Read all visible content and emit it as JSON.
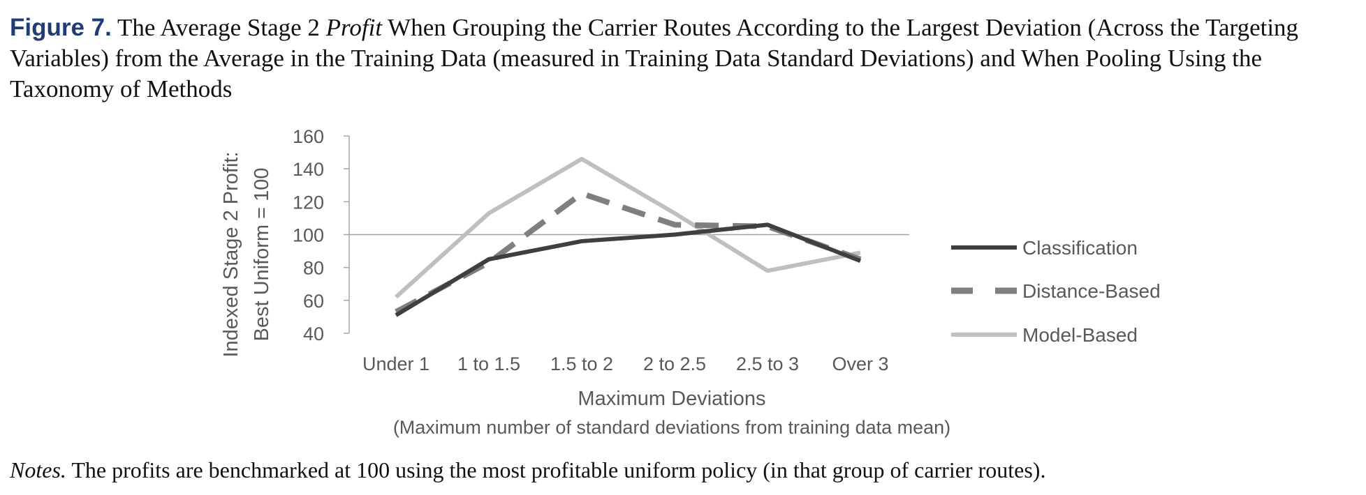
{
  "caption": {
    "label": "Figure 7.",
    "text_before_italic": " The Average Stage 2 ",
    "italic": "Profit",
    "text_after_italic": " When Grouping the Carrier Routes According to the Largest Deviation (Across the Targeting Variables) from the Average in the Training Data (measured in Training Data Standard Deviations) and When Pooling Using the Taxonomy of Methods"
  },
  "notes": {
    "label": "Notes.",
    "text": " The profits are benchmarked at 100 using the most profitable uniform policy (in that group of carrier routes)."
  },
  "chart_data": {
    "type": "line",
    "categories": [
      "Under 1",
      "1 to 1.5",
      "1.5 to 2",
      "2 to 2.5",
      "2.5 to 3",
      "Over 3"
    ],
    "series": [
      {
        "name": "Classification",
        "values": [
          51,
          85,
          96,
          100,
          106,
          84
        ],
        "color": "#3f3f3f",
        "dash": "solid"
      },
      {
        "name": "Distance-Based",
        "values": [
          53,
          83,
          125,
          106,
          105,
          85
        ],
        "color": "#7f7f7f",
        "dash": "dashed"
      },
      {
        "name": "Model-Based",
        "values": [
          62,
          113,
          146,
          113,
          78,
          89
        ],
        "color": "#bfbfbf",
        "dash": "solid"
      }
    ],
    "reference_line": 100,
    "ylim": [
      40,
      160
    ],
    "yticks": [
      40,
      60,
      80,
      100,
      120,
      140,
      160
    ],
    "ylabel_line1": "Indexed Stage 2 Profit:",
    "ylabel_line2": "Best Uniform = 100",
    "xlabel_line1": "Maximum Deviations",
    "xlabel_line2": "(Maximum number of standard deviations from training data mean)",
    "legend_position": "right",
    "grid": false
  }
}
